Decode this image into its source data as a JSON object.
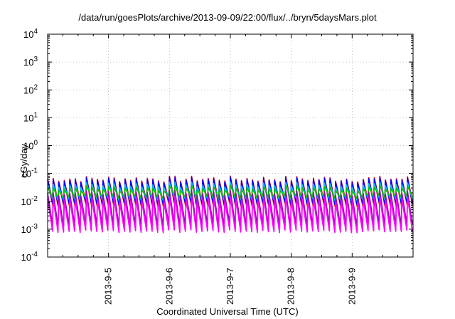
{
  "chart_data": {
    "type": "line",
    "title": "/data/run/goesPlots/archive/2013-09-09/22:00/flux/../bryn/5daysMars.plot",
    "xlabel": "Coordinated Universal Time (UTC)",
    "ylabel": "cGy/day",
    "yscale": "log",
    "ylim": [
      0.0001,
      10000
    ],
    "y_ticks": [
      {
        "exp": "-4",
        "value": 0.0001
      },
      {
        "exp": "-3",
        "value": 0.001
      },
      {
        "exp": "-2",
        "value": 0.01
      },
      {
        "exp": "-1",
        "value": 0.1
      },
      {
        "exp": "0",
        "value": 1
      },
      {
        "exp": "1",
        "value": 10
      },
      {
        "exp": "2",
        "value": 100
      },
      {
        "exp": "3",
        "value": 1000
      },
      {
        "exp": "4",
        "value": 10000
      }
    ],
    "y_tick_base": "10",
    "xlim": [
      "2013-09-04 00:00",
      "2013-09-09 23:59"
    ],
    "x_ticks": [
      "2013-9-5",
      "2013-9-6",
      "2013-9-7",
      "2013-9-8",
      "2013-9-9"
    ],
    "grid": true,
    "pattern": {
      "cycles_per_day": 11,
      "note_peak_range": [
        0.03,
        0.07
      ],
      "trough_range": [
        0.0005,
        0.002
      ]
    },
    "series": [
      {
        "color": "#ff0000",
        "peak": 0.065,
        "trough": 0.0085
      },
      {
        "color": "#ff6600",
        "peak": 0.055,
        "trough": 0.006
      },
      {
        "color": "#0000ff",
        "peak": 0.06,
        "trough": 0.007
      },
      {
        "color": "#00c0ff",
        "peak": 0.04,
        "trough": 0.01
      },
      {
        "color": "#00c000",
        "peak": 0.03,
        "trough": 0.012
      },
      {
        "color": "#a000c0",
        "peak": 0.02,
        "trough": 0.0012
      },
      {
        "color": "#ff00ff",
        "peak": 0.012,
        "trough": 0.0007
      }
    ]
  }
}
